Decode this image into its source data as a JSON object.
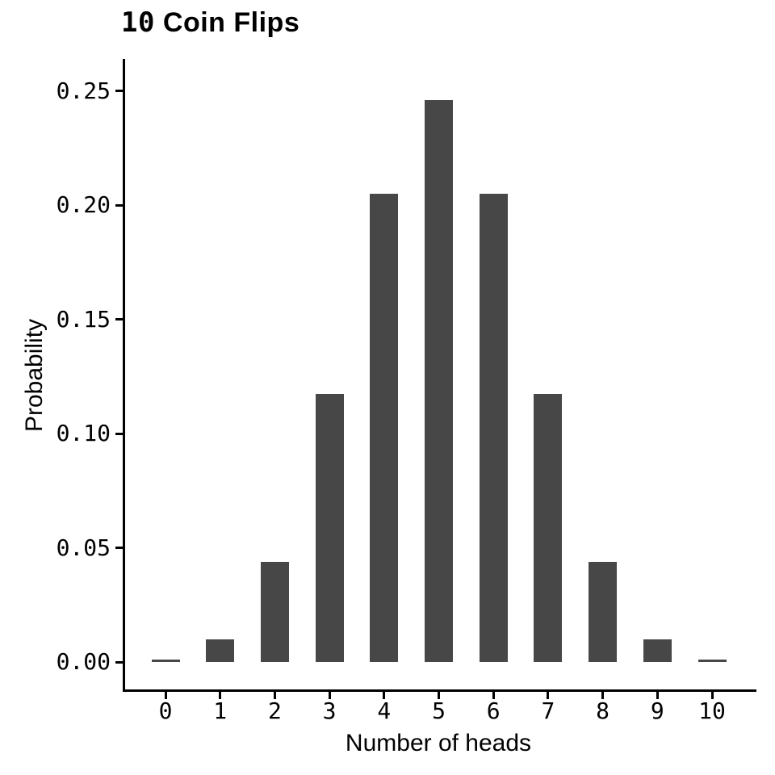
{
  "chart_data": {
    "type": "bar",
    "title": "10 Coin Flips",
    "title_parts": {
      "number": "10",
      "words": "Coin Flips"
    },
    "xlabel": "Number of heads",
    "ylabel": "Probability",
    "categories": [
      "0",
      "1",
      "2",
      "3",
      "4",
      "5",
      "6",
      "7",
      "8",
      "9",
      "10"
    ],
    "values": [
      0.000977,
      0.009766,
      0.043945,
      0.117188,
      0.205078,
      0.246094,
      0.205078,
      0.117188,
      0.043945,
      0.009766,
      0.000977
    ],
    "ytick_labels": [
      "0.00",
      "0.05",
      "0.10",
      "0.15",
      "0.20",
      "0.25"
    ],
    "ylim": [
      0,
      0.25
    ],
    "grid": false,
    "legend": false,
    "bar_color": "#474747",
    "axis_color": "#000000",
    "text_color": "#000000",
    "background_color": "#ffffff"
  }
}
